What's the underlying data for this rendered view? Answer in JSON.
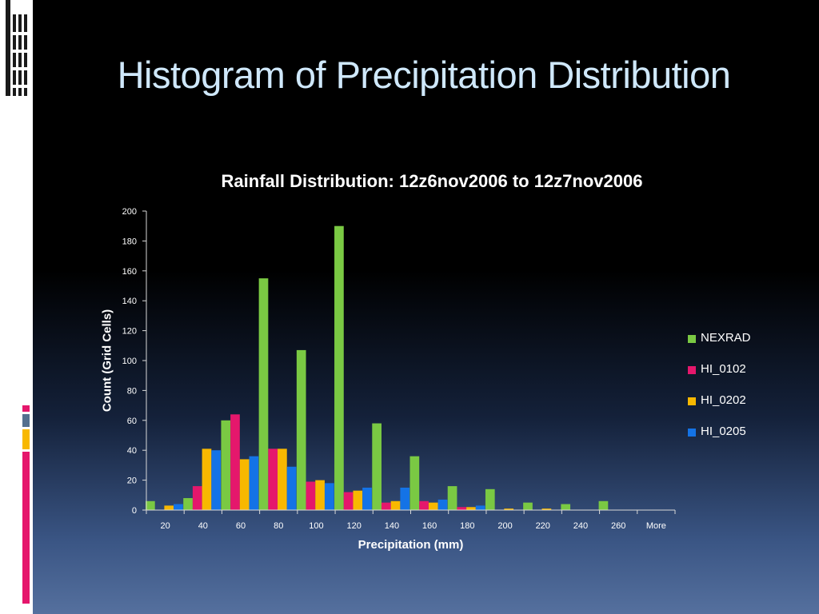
{
  "slide": {
    "title": "Histogram of Precipitation Distribution"
  },
  "theme": {
    "background_top": "#000000",
    "background_bottom": "#55709e",
    "title_color": "#cfe8fb",
    "accent_magenta": "#e5176c",
    "accent_gold": "#f8b800"
  },
  "chart_data": {
    "type": "bar",
    "title": "Rainfall Distribution: 12z6nov2006 to 12z7nov2006",
    "xlabel": "Precipitation (mm)",
    "ylabel": "Count (Grid Cells)",
    "ylim": [
      0,
      200
    ],
    "yticks": [
      0,
      20,
      40,
      60,
      80,
      100,
      120,
      140,
      160,
      180,
      200
    ],
    "grid": false,
    "legend_position": "right",
    "categories": [
      "20",
      "40",
      "60",
      "80",
      "100",
      "120",
      "140",
      "160",
      "180",
      "200",
      "220",
      "240",
      "260",
      "More"
    ],
    "series": [
      {
        "name": "NEXRAD",
        "color": "#7ac943",
        "values": [
          6,
          8,
          60,
          155,
          107,
          190,
          58,
          36,
          16,
          14,
          5,
          4,
          6,
          0
        ]
      },
      {
        "name": "HI_0102",
        "color": "#e5176c",
        "values": [
          0,
          16,
          64,
          41,
          19,
          12,
          5,
          6,
          2,
          0,
          0,
          0,
          0,
          0
        ]
      },
      {
        "name": "HI_0202",
        "color": "#f8b800",
        "values": [
          3,
          41,
          34,
          41,
          20,
          13,
          6,
          5,
          2,
          1,
          1,
          0,
          0,
          0
        ]
      },
      {
        "name": "HI_0205",
        "color": "#1473e6",
        "values": [
          4,
          40,
          36,
          29,
          18,
          15,
          15,
          7,
          3,
          0,
          0,
          0,
          0,
          0
        ]
      }
    ]
  }
}
